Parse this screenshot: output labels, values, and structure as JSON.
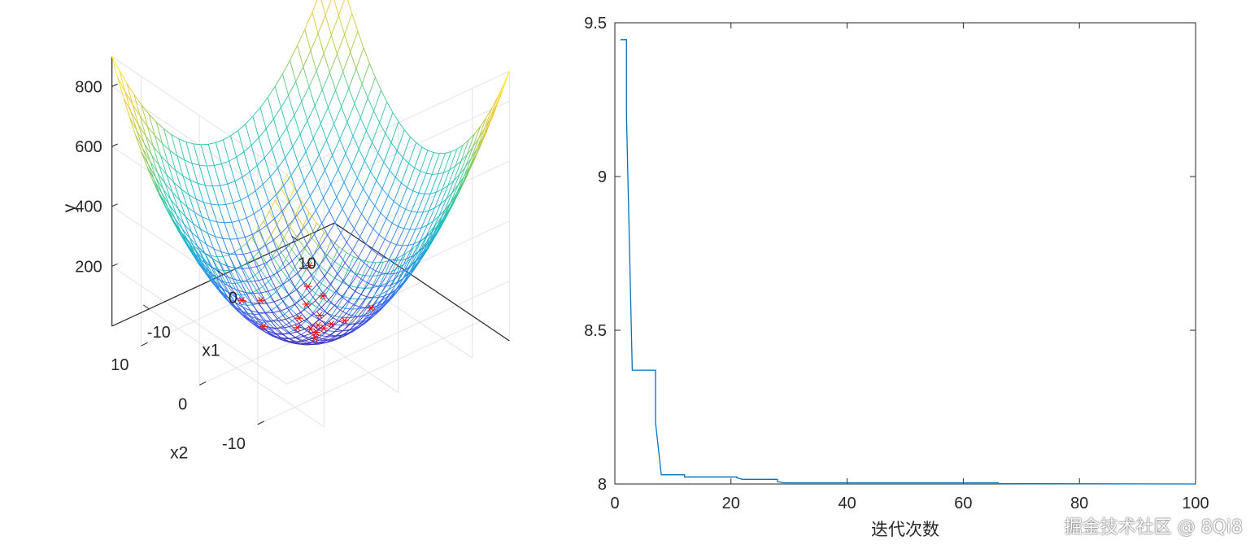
{
  "chart_data": [
    {
      "type": "surface3d",
      "xlabel": "x1",
      "ylabel": "x2",
      "zlabel": "y",
      "x_ticks": [
        "-10",
        "0",
        "10"
      ],
      "y_ticks": [
        "-10",
        "0",
        "10"
      ],
      "z_ticks": [
        "200",
        "400",
        "600",
        "800"
      ],
      "xlim": [
        -15,
        15
      ],
      "ylim": [
        -15,
        15
      ],
      "zlim": [
        0,
        900
      ],
      "grid": true,
      "surface_colormap": "parula",
      "surface_style": "mesh",
      "marker": "*",
      "marker_color": "#ff0000",
      "points": [
        {
          "x": -3,
          "y": 8,
          "z": 40
        },
        {
          "x": -2,
          "y": 6,
          "z": 55
        },
        {
          "x": 0,
          "y": 2,
          "z": 25
        },
        {
          "x": 1,
          "y": -1,
          "z": 20
        },
        {
          "x": 2,
          "y": 1,
          "z": 25
        },
        {
          "x": 3,
          "y": -2,
          "z": 35
        },
        {
          "x": 0,
          "y": 0,
          "z": 15
        },
        {
          "x": -1,
          "y": 1,
          "z": 18
        },
        {
          "x": 1,
          "y": 0,
          "z": 16
        },
        {
          "x": 0,
          "y": -1,
          "z": 17
        },
        {
          "x": 2,
          "y": -1,
          "z": 22
        },
        {
          "x": -1,
          "y": -2,
          "z": 24
        },
        {
          "x": 4,
          "y": 3,
          "z": 40
        },
        {
          "x": 1,
          "y": 2,
          "z": 60
        },
        {
          "x": 2,
          "y": 3,
          "z": 95
        },
        {
          "x": 3,
          "y": 4,
          "z": 140
        },
        {
          "x": 5,
          "y": -4,
          "z": 80
        },
        {
          "x": -4,
          "y": 3,
          "z": 30
        }
      ]
    },
    {
      "type": "line",
      "xlabel": "迭代次数",
      "ylabel": "",
      "xlim": [
        0,
        100
      ],
      "ylim": [
        8,
        9.5
      ],
      "x_ticks": [
        0,
        20,
        40,
        60,
        80,
        100
      ],
      "y_ticks": [
        "8",
        "8.5",
        "9",
        "9.5"
      ],
      "grid": false,
      "line_color": "#0072bd",
      "series": [
        {
          "x": [
            1,
            2,
            2,
            3,
            3,
            7,
            7,
            8,
            8,
            12,
            12,
            21,
            21,
            22,
            22,
            28,
            28,
            29,
            29,
            66,
            66,
            100
          ],
          "y": [
            9.445,
            9.445,
            9.2,
            8.37,
            8.37,
            8.37,
            8.2,
            8.03,
            8.03,
            8.03,
            8.023,
            8.023,
            8.02,
            8.015,
            8.015,
            8.015,
            8.008,
            8.004,
            8.004,
            8.004,
            8.001,
            8.0
          ]
        }
      ]
    }
  ],
  "watermark": "掘金技术社区 @ 8Qi8"
}
